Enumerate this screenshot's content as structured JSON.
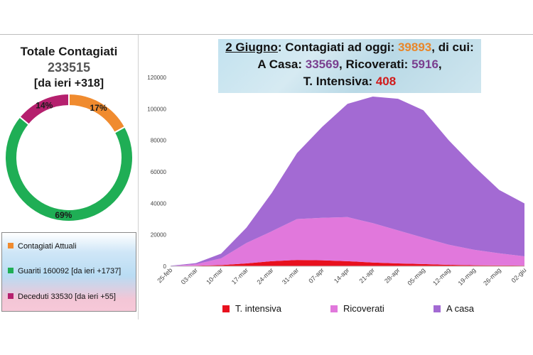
{
  "left_panel": {
    "title": "Totale Contagiati",
    "total": "233515",
    "delta": "[da ieri +318]",
    "legend": [
      {
        "label": "Contagiati Attuali",
        "color": "#f08b2f"
      },
      {
        "label": "Guariti 160092 [da ieri +1737]",
        "color": "#1fae55"
      },
      {
        "label": "Deceduti 33530 [da ieri +55]",
        "color": "#b5206e"
      }
    ]
  },
  "banner": {
    "date": "2 Giugno",
    "text1": ": Contagiati ad oggi: ",
    "value1": "39893",
    "text2": ", di cui:",
    "text3": "A Casa: ",
    "value_casa": "33569",
    "text4": ", Ricoverati: ",
    "value_ricoverati": "5916",
    "text5": ",",
    "text6": "T. Intensiva: ",
    "value_intensiva": "408"
  },
  "chart_data": [
    {
      "type": "pie",
      "style": "donut",
      "labels": [
        "Contagiati Attuali",
        "Guariti",
        "Deceduti"
      ],
      "values": [
        17,
        69,
        14
      ],
      "value_labels": [
        "17%",
        "69%",
        "14%"
      ],
      "colors": [
        "#f08b2f",
        "#1fae55",
        "#b5206e"
      ]
    },
    {
      "type": "area",
      "stacked": true,
      "x": [
        "25-feb",
        "03-mar",
        "10-mar",
        "17-mar",
        "24-mar",
        "31-mar",
        "07-apr",
        "14-apr",
        "21-apr",
        "28-apr",
        "05-mag",
        "12-mag",
        "19-mag",
        "26-mag",
        "02-giu"
      ],
      "series": [
        {
          "name": "T. intensiva",
          "color": "#e8101e",
          "values": [
            30,
            300,
            700,
            1800,
            3200,
            4000,
            3800,
            3200,
            2400,
            1800,
            1400,
            900,
            650,
            500,
            410
          ]
        },
        {
          "name": "Ricoverati",
          "color": "#e178dc",
          "values": [
            100,
            1000,
            4300,
            13000,
            19000,
            26000,
            27000,
            28000,
            25000,
            21000,
            16800,
            12800,
            9800,
            7700,
            5900
          ]
        },
        {
          "name": "A casa",
          "color": "#a36ad3",
          "values": [
            190,
            700,
            3000,
            9700,
            24300,
            41900,
            57800,
            72000,
            80400,
            83600,
            80900,
            66400,
            53100,
            40300,
            33600
          ]
        }
      ],
      "y_ticks": [
        0,
        20000,
        40000,
        60000,
        80000,
        100000,
        120000
      ],
      "y_tick_labels": [
        "0",
        "20000",
        "40000",
        "60000",
        "80000",
        "100000",
        "120000"
      ],
      "ylim": [
        0,
        120000
      ],
      "legend_position": "bottom",
      "grid": false
    }
  ]
}
